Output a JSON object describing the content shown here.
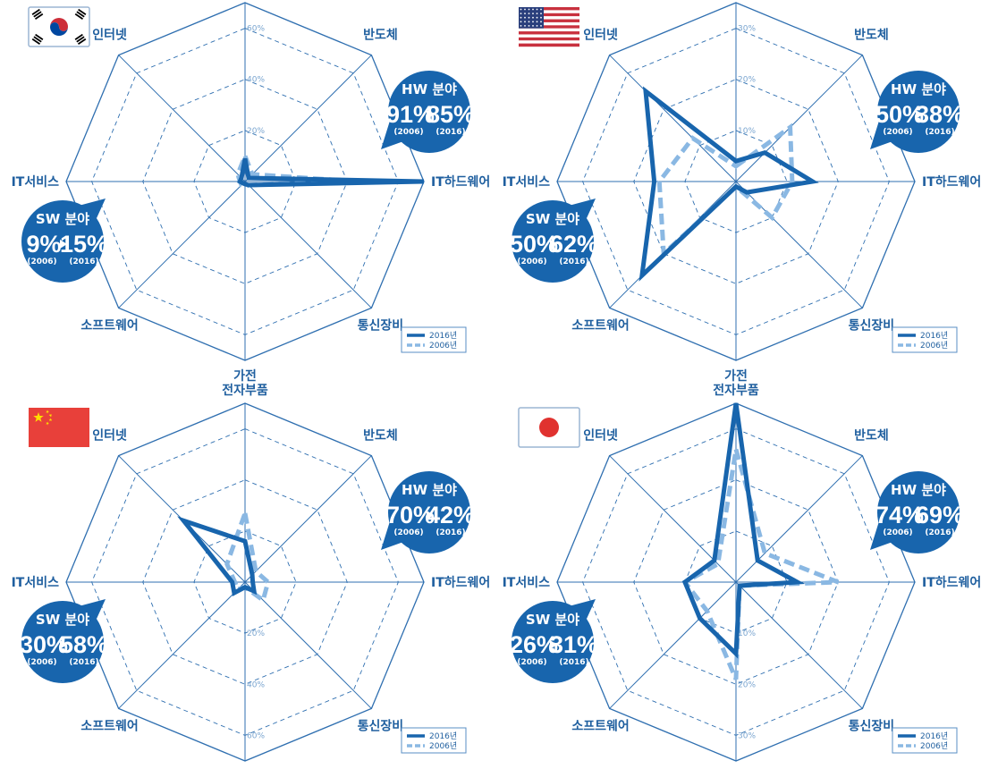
{
  "colors": {
    "grid": "#2f6fb0",
    "grid_inner": "#2f6fb0",
    "series_2016": "#1865ad",
    "series_2006": "#8ab8e3",
    "badge": "#1865ad",
    "label": "#1f5f9f"
  },
  "axes": [
    "전자부품",
    "반도체",
    "IT하드웨어",
    "통신장비",
    "가전",
    "소프트웨어",
    "IT서비스",
    "인터넷"
  ],
  "legend": [
    "2016년",
    "2006년"
  ],
  "badge_titles": {
    "hw": "HW 분야",
    "sw": "SW 분야"
  },
  "years": {
    "from": "(2006)",
    "to": "(2016)"
  },
  "chart_data": [
    {
      "type": "radar",
      "country": "Korea",
      "flag": "korea-flag",
      "rmax": 70,
      "ticks": [
        {
          "value": 20,
          "label": "20%",
          "dir": "up"
        },
        {
          "value": 40,
          "label": "40%",
          "dir": "up"
        },
        {
          "value": 60,
          "label": "60%",
          "dir": "up"
        }
      ],
      "categories": [
        "전자부품",
        "반도체",
        "IT하드웨어",
        "통신장비",
        "가전",
        "소프트웨어",
        "IT서비스",
        "인터넷"
      ],
      "series": [
        {
          "name": "2016년",
          "values": [
            9,
            2,
            70,
            2,
            1,
            1,
            2,
            2
          ]
        },
        {
          "name": "2006년",
          "values": [
            10,
            4,
            44,
            2,
            2,
            2,
            2,
            4
          ]
        }
      ],
      "hw": {
        "from": "91%",
        "to": "85%"
      },
      "sw": {
        "from": "9%",
        "to": "15%"
      }
    },
    {
      "type": "radar",
      "country": "USA",
      "flag": "usa-flag",
      "rmax": 35,
      "ticks": [
        {
          "value": 10,
          "label": "10%",
          "dir": "up"
        },
        {
          "value": 20,
          "label": "20%",
          "dir": "up"
        },
        {
          "value": 30,
          "label": "30%",
          "dir": "up"
        }
      ],
      "categories": [
        "전자부품",
        "반도체",
        "IT하드웨어",
        "통신장비",
        "가전",
        "소프트웨어",
        "IT서비스",
        "인터넷"
      ],
      "series": [
        {
          "name": "2016년",
          "values": [
            4,
            8,
            15,
            3,
            1,
            26,
            16,
            25
          ]
        },
        {
          "name": "2006년",
          "values": [
            3,
            15,
            11,
            10,
            1,
            20,
            15,
            12
          ]
        }
      ],
      "hw": {
        "from": "50%",
        "to": "38%"
      },
      "sw": {
        "from": "50%",
        "to": "62%"
      }
    },
    {
      "type": "radar",
      "country": "China",
      "flag": "china-flag",
      "rmax": 70,
      "ticks": [
        {
          "value": 20,
          "label": "20%",
          "dir": "down"
        },
        {
          "value": 40,
          "label": "40%",
          "dir": "down"
        },
        {
          "value": 60,
          "label": "60%",
          "dir": "down"
        }
      ],
      "categories": [
        "전자부품",
        "반도체",
        "IT하드웨어",
        "통신장비",
        "가전",
        "소프트웨어",
        "IT서비스",
        "인터넷"
      ],
      "series": [
        {
          "name": "2016년",
          "values": [
            16,
            4,
            3,
            5,
            2,
            6,
            5,
            34
          ]
        },
        {
          "name": "2006년",
          "values": [
            27,
            6,
            9,
            10,
            2,
            4,
            4,
            10
          ]
        }
      ],
      "hw": {
        "from": "70%",
        "to": "42%"
      },
      "sw": {
        "from": "30%",
        "to": "58%"
      }
    },
    {
      "type": "radar",
      "country": "Japan",
      "flag": "japan-flag",
      "rmax": 35,
      "ticks": [
        {
          "value": 10,
          "label": "10%",
          "dir": "down"
        },
        {
          "value": 20,
          "label": "20%",
          "dir": "down"
        },
        {
          "value": 30,
          "label": "30%",
          "dir": "down"
        }
      ],
      "categories": [
        "전자부품",
        "반도체",
        "IT하드웨어",
        "통신장비",
        "가전",
        "소프트웨어",
        "IT서비스",
        "인터넷"
      ],
      "series": [
        {
          "name": "2016년",
          "values": [
            35,
            6,
            12,
            1,
            14,
            10,
            10,
            6
          ]
        },
        {
          "name": "2006년",
          "values": [
            26,
            8,
            20,
            1,
            19,
            8,
            10,
            5
          ]
        }
      ],
      "hw": {
        "from": "74%",
        "to": "69%"
      },
      "sw": {
        "from": "26%",
        "to": "31%"
      }
    }
  ]
}
